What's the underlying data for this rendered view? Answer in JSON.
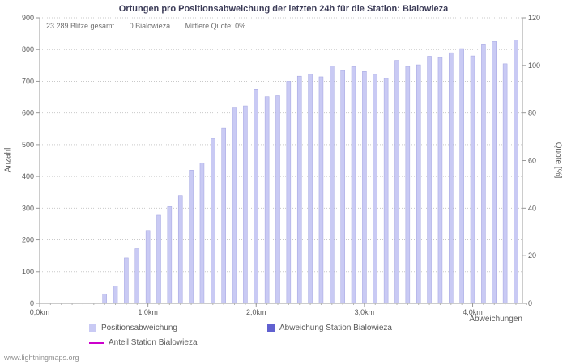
{
  "stats": {
    "total": "23.289 Blitze gesamt",
    "station": "0 Bialowieza",
    "quote": "Mittlere Quote: 0%"
  },
  "footer": "www.lightningmaps.org",
  "legend": [
    {
      "label": "Positionsabweichung",
      "type": "box",
      "color": "#c9caf4"
    },
    {
      "label": "Abweichung Station Bialowieza",
      "type": "box",
      "color": "#6161d0"
    },
    {
      "label": "Anteil Station Bialowieza",
      "type": "line",
      "color": "#cc00cc"
    }
  ],
  "chart_data": {
    "type": "bar",
    "title": "Ortungen pro Positionsabweichung der letzten 24h für die Station: Bialowieza",
    "x_unit": "km",
    "x": [
      0.6,
      0.7,
      0.8,
      0.9,
      1.0,
      1.1,
      1.2,
      1.3,
      1.4,
      1.5,
      1.6,
      1.7,
      1.8,
      1.9,
      2.0,
      2.1,
      2.2,
      2.3,
      2.4,
      2.5,
      2.6,
      2.7,
      2.8,
      2.9,
      3.0,
      3.1,
      3.2,
      3.3,
      3.4,
      3.5,
      3.6,
      3.7,
      3.8,
      3.9,
      4.0,
      4.1,
      4.2,
      4.3,
      4.4
    ],
    "series": [
      {
        "name": "Positionsabweichung",
        "axis": "left",
        "kind": "bar",
        "color": "#c9caf4",
        "values": [
          30,
          55,
          143,
          172,
          230,
          278,
          305,
          340,
          420,
          443,
          520,
          553,
          618,
          622,
          675,
          651,
          654,
          700,
          716,
          722,
          714,
          748,
          734,
          746,
          731,
          722,
          709,
          766,
          747,
          752,
          779,
          775,
          790,
          803,
          780,
          815,
          825,
          755,
          830
        ]
      },
      {
        "name": "Abweichung Station Bialowieza",
        "axis": "left",
        "kind": "bar",
        "color": "#6161d0",
        "values": [
          0,
          0,
          0,
          0,
          0,
          0,
          0,
          0,
          0,
          0,
          0,
          0,
          0,
          0,
          0,
          0,
          0,
          0,
          0,
          0,
          0,
          0,
          0,
          0,
          0,
          0,
          0,
          0,
          0,
          0,
          0,
          0,
          0,
          0,
          0,
          0,
          0,
          0,
          0
        ]
      },
      {
        "name": "Anteil Station Bialowieza",
        "axis": "right",
        "kind": "line",
        "color": "#cc00cc",
        "values": [
          0,
          0,
          0,
          0,
          0,
          0,
          0,
          0,
          0,
          0,
          0,
          0,
          0,
          0,
          0,
          0,
          0,
          0,
          0,
          0,
          0,
          0,
          0,
          0,
          0,
          0,
          0,
          0,
          0,
          0,
          0,
          0,
          0,
          0,
          0,
          0,
          0,
          0,
          0
        ]
      }
    ],
    "left_axis": {
      "label": "Anzahl",
      "min": 0,
      "max": 900,
      "tick_step": 100
    },
    "right_axis": {
      "label": "Quote [%]",
      "min": 0,
      "max": 120,
      "tick_step": 20
    },
    "x_axis": {
      "label": "Abweichungen",
      "min": 0,
      "max": 4.46,
      "tick_values": [
        0,
        1,
        2,
        3,
        4
      ],
      "tick_labels": [
        "0,0km",
        "1,0km",
        "2,0km",
        "3,0km",
        "4,0km"
      ],
      "minor_tick_step": 0.1
    },
    "grid": "horizontal-dotted",
    "legend_position": "bottom"
  }
}
